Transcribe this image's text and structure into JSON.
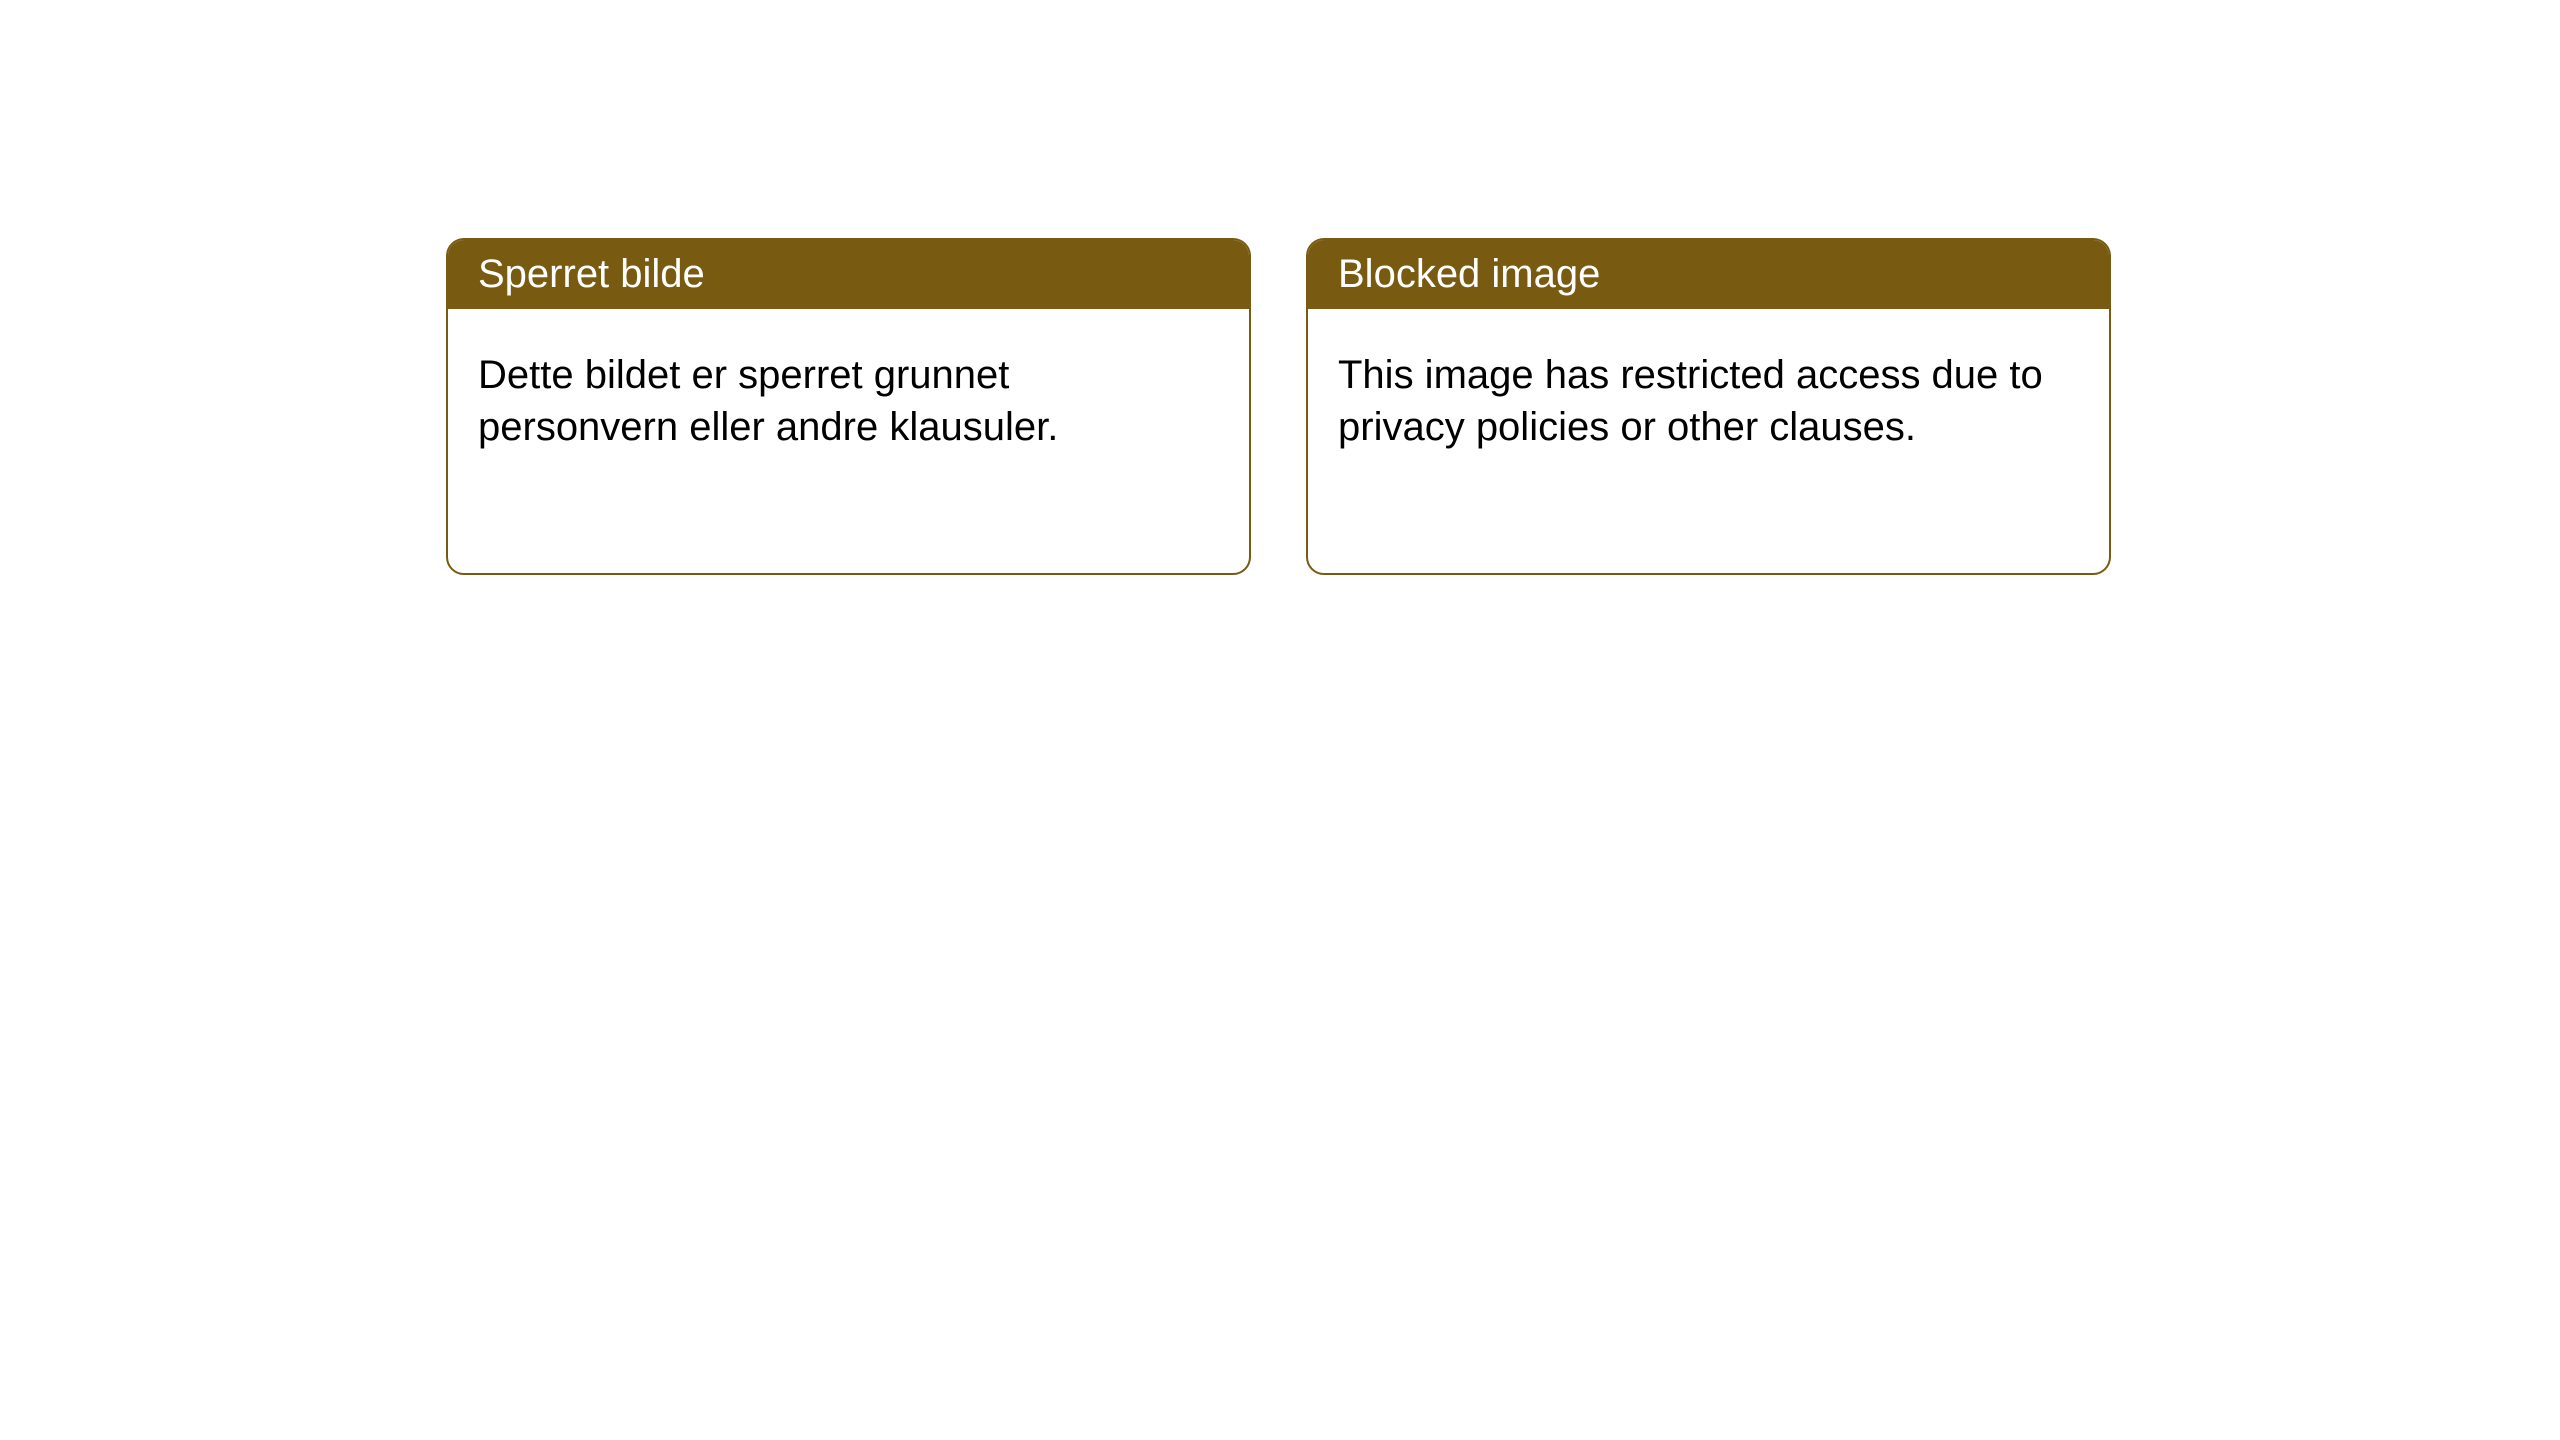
{
  "cards": [
    {
      "header": "Sperret bilde",
      "body": "Dette bildet er sperret grunnet personvern eller andre klausuler."
    },
    {
      "header": "Blocked image",
      "body": "This image has restricted access due to privacy policies or other clauses."
    }
  ],
  "styling": {
    "header_background_color": "#785a10",
    "header_text_color": "#ffffff",
    "card_border_color": "#785a10",
    "card_border_radius": 18,
    "card_background_color": "#ffffff",
    "body_text_color": "#000000",
    "header_font_size": 40,
    "body_font_size": 40,
    "page_background_color": "#ffffff"
  }
}
